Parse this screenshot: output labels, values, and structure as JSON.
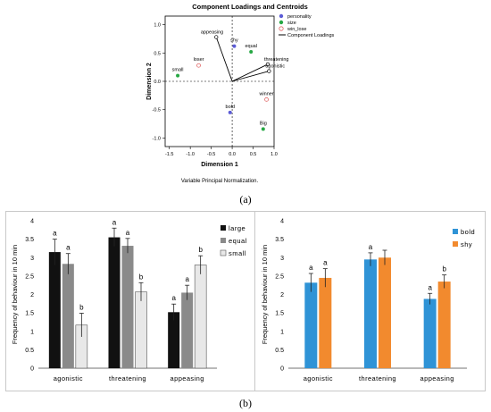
{
  "captions": {
    "a": "(a)",
    "b": "(b)"
  },
  "chart_data": [
    {
      "type": "scatter",
      "title": "Component Loadings and Centroids",
      "xlabel": "Dimension 1",
      "ylabel": "Dimension 2",
      "xlim": [
        -1.6,
        1.0
      ],
      "ylim": [
        -1.15,
        1.15
      ],
      "xticks": [
        "-1.5",
        "-1.0",
        "-0.5",
        "0.0",
        "0.5",
        "1.0"
      ],
      "yticks": [
        "1.0",
        "0.5",
        "0.0",
        "-0.5",
        "-1.0"
      ],
      "note": "Variable Principal Normalization.",
      "legend": {
        "items": [
          {
            "label": "personality",
            "color": "#5b5bd6",
            "marker": "dot"
          },
          {
            "label": "size",
            "color": "#27a844",
            "marker": "dot"
          },
          {
            "label": "win_lose",
            "color": "#e06666",
            "marker": "ring"
          },
          {
            "label": "Component Loadings",
            "color": "#000000",
            "marker": "line"
          }
        ]
      },
      "loadings": [
        {
          "label": "appeasing",
          "x": -0.38,
          "y": 0.78
        },
        {
          "label": "threatening",
          "x": 0.85,
          "y": 0.3
        },
        {
          "label": "agonistic",
          "x": 0.88,
          "y": 0.18
        }
      ],
      "centroids": [
        {
          "label": "shy",
          "group": "personality",
          "x": 0.05,
          "y": 0.62
        },
        {
          "label": "bold",
          "group": "personality",
          "x": -0.05,
          "y": -0.55
        },
        {
          "label": "equal",
          "group": "size",
          "x": 0.45,
          "y": 0.52
        },
        {
          "label": "small",
          "group": "size",
          "x": -1.3,
          "y": 0.1
        },
        {
          "label": "Big",
          "group": "size",
          "x": 0.74,
          "y": -0.84
        },
        {
          "label": "loser",
          "group": "win_lose",
          "x": -0.8,
          "y": 0.28
        },
        {
          "label": "winner",
          "group": "win_lose",
          "x": 0.82,
          "y": -0.32
        }
      ]
    },
    {
      "type": "bar",
      "ylabel": "Frequency of behaviour in 10 min",
      "ylim": [
        0,
        4
      ],
      "yticks": [
        "0",
        "0.5",
        "1",
        "1.5",
        "2",
        "2.5",
        "3",
        "3.5",
        "4"
      ],
      "categories": [
        "agonistic",
        "threatening",
        "appeasing"
      ],
      "legend_position": "top-right",
      "series": [
        {
          "name": "large",
          "color": "#111111",
          "values": [
            3.15,
            3.55,
            1.52
          ],
          "errors": [
            0.35,
            0.25,
            0.22
          ],
          "labels": [
            "a",
            "a",
            "a"
          ]
        },
        {
          "name": "equal",
          "color": "#8a8a8a",
          "values": [
            2.83,
            3.32,
            2.05
          ],
          "errors": [
            0.28,
            0.2,
            0.2
          ],
          "labels": [
            "a",
            "a",
            "a"
          ]
        },
        {
          "name": "small",
          "color": "#e8e8e8",
          "values": [
            1.17,
            2.07,
            2.8
          ],
          "errors": [
            0.32,
            0.25,
            0.25
          ],
          "labels": [
            "b",
            "b",
            "b"
          ]
        }
      ]
    },
    {
      "type": "bar",
      "ylabel": "Frequency of behaviour in 10 min",
      "ylim": [
        0,
        4
      ],
      "yticks": [
        "0",
        "0.5",
        "1",
        "1.5",
        "2",
        "2.5",
        "3",
        "3.5",
        "4"
      ],
      "categories": [
        "agonistic",
        "threatening",
        "appeasing"
      ],
      "legend_position": "top-right",
      "series": [
        {
          "name": "bold",
          "color": "#2f93d6",
          "values": [
            2.32,
            2.95,
            1.88
          ],
          "errors": [
            0.25,
            0.18,
            0.15
          ],
          "labels": [
            "a",
            "a",
            "a"
          ]
        },
        {
          "name": "shy",
          "color": "#f28a2e",
          "values": [
            2.45,
            3.0,
            2.35
          ],
          "errors": [
            0.25,
            0.2,
            0.18
          ],
          "labels": [
            "a",
            "",
            "b"
          ]
        }
      ]
    }
  ]
}
